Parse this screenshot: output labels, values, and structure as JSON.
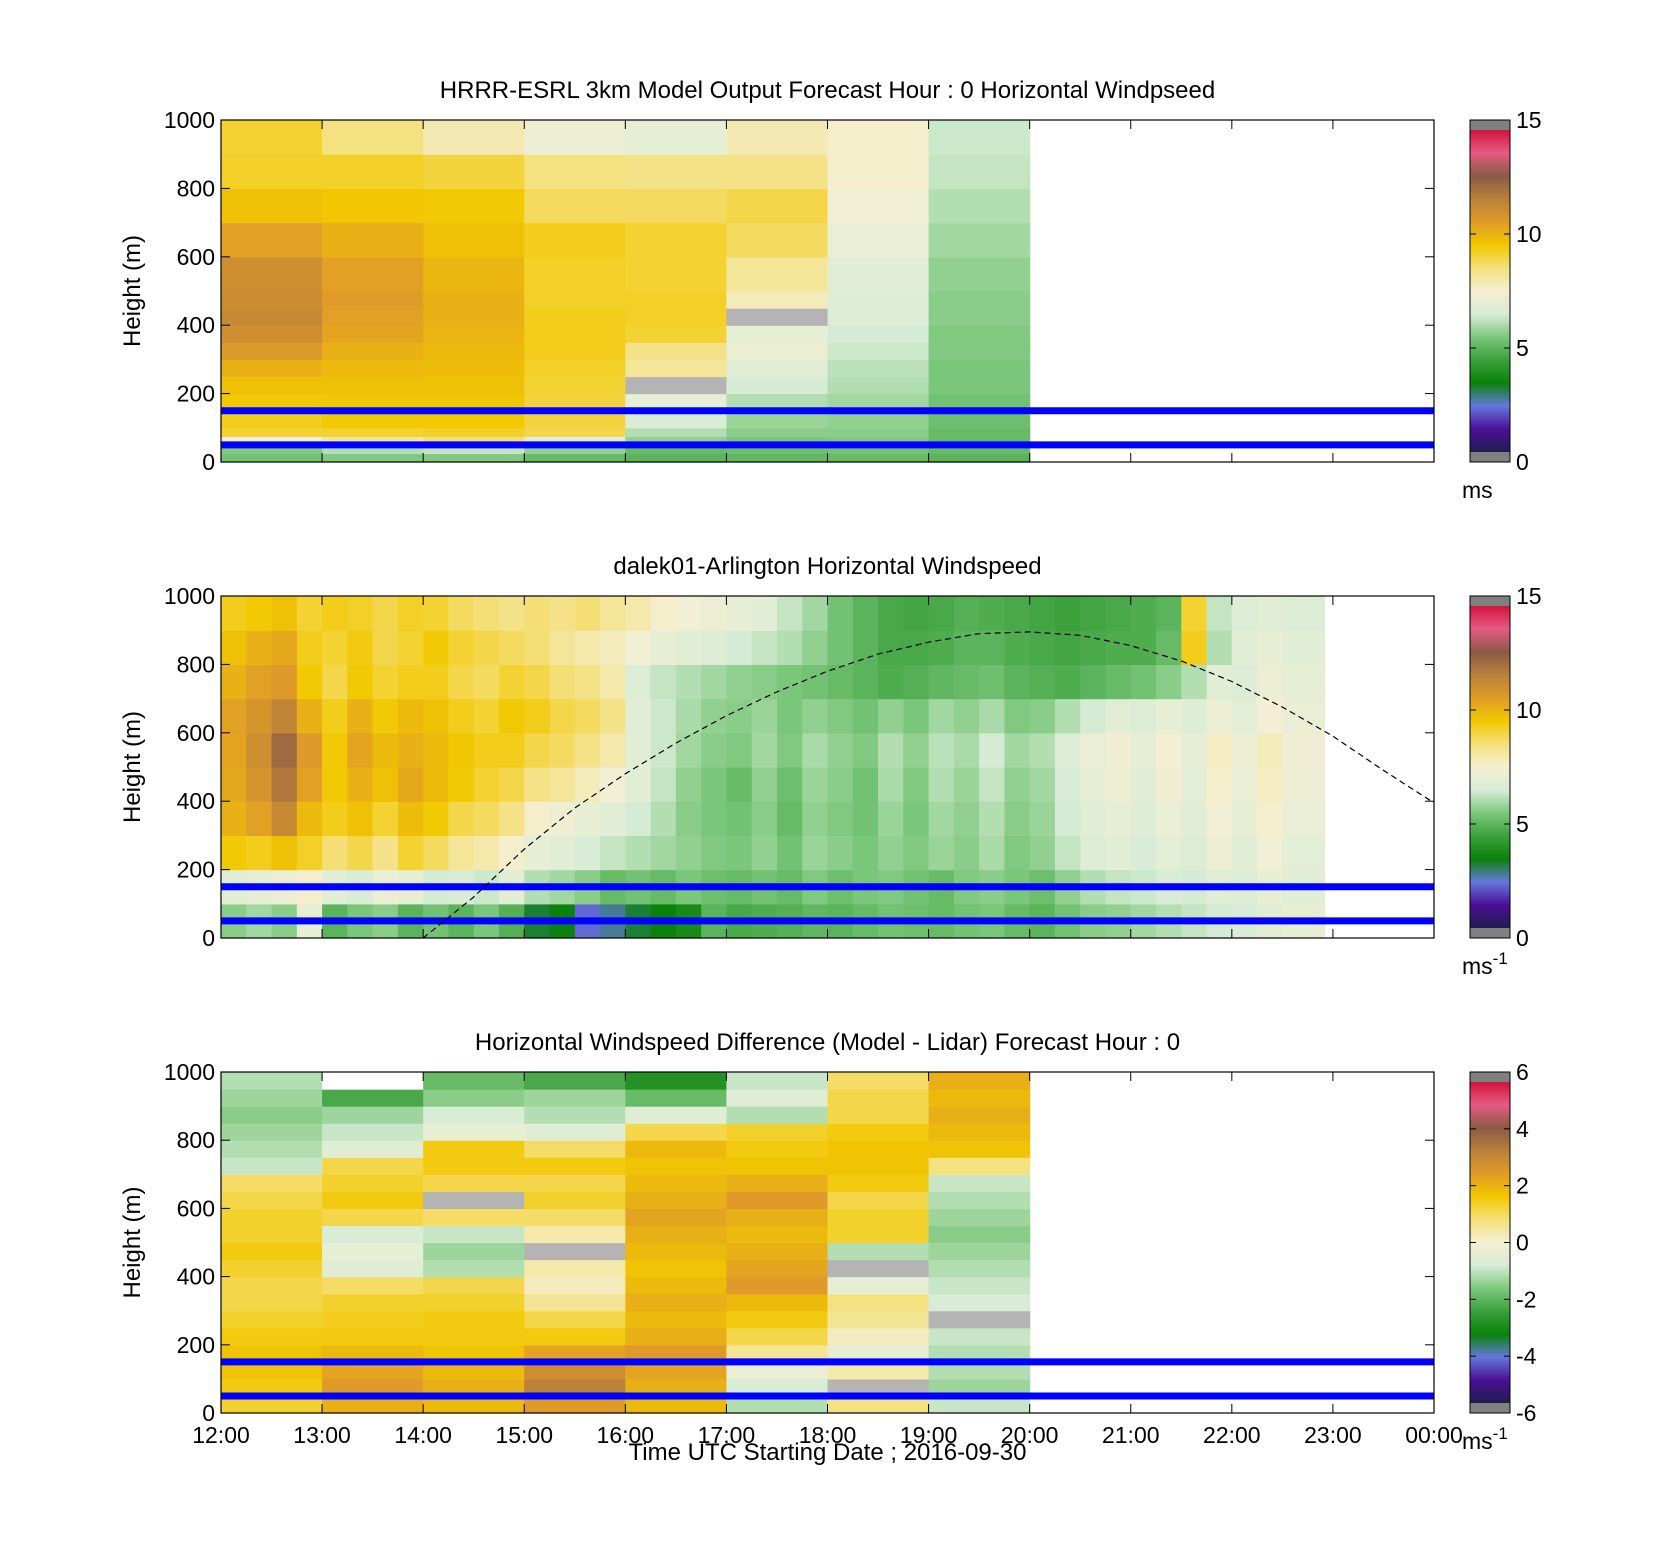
{
  "figure": {
    "xlabel": "Time UTC  Starting Date ; 2016-09-30",
    "x_tick_labels": [
      "12:00",
      "13:00",
      "14:00",
      "15:00",
      "16:00",
      "17:00",
      "18:00",
      "19:00",
      "20:00",
      "21:00",
      "22:00",
      "23:00",
      "00:00"
    ]
  },
  "colors": {
    "overlay_line": "#0000ff",
    "curve_line": "#000000",
    "colormap": [
      "#1e1e50",
      "#4b0f96",
      "#6478dc",
      "#0a820a",
      "#3ca03c",
      "#7dc87d",
      "#d7ecd5",
      "#f4efd4",
      "#f4e07a",
      "#f2c800",
      "#e09b28",
      "#b9803a",
      "#8a5a46",
      "#e65a82",
      "#d2143c"
    ]
  },
  "chart_data": [
    {
      "type": "heatmap",
      "title": "HRRR-ESRL 3km Model Output   Forecast Hour : 0 Horizontal Windpseed",
      "ylabel": "Height (m)",
      "xlabel": "",
      "xlim": [
        "12:00",
        "00:00"
      ],
      "ylim": [
        0,
        1000
      ],
      "y_tick_labels": [
        "0",
        "200",
        "400",
        "600",
        "800",
        "1000"
      ],
      "colorbar": {
        "range": [
          0,
          15
        ],
        "tick_labels": [
          "0",
          "5",
          "10",
          "15"
        ],
        "unit": "ms",
        "unit_sup": ""
      },
      "data_extent": [
        "12:00",
        "20:00"
      ],
      "overlay_lines_m": [
        50,
        150
      ],
      "grey_color": "#b4b4b4",
      "time_columns": [
        "12:00",
        "13:00",
        "14:00",
        "15:00",
        "16:00",
        "17:00",
        "18:00",
        "19:00"
      ],
      "height_rows_m": [
        0,
        25,
        50,
        75,
        100,
        150,
        200,
        250,
        300,
        350,
        400,
        450,
        500,
        600,
        700,
        800,
        900
      ],
      "values": [
        [
          5.2,
          5.4,
          5.4,
          5.0,
          4.8,
          4.9,
          5.0,
          4.8
        ],
        [
          5.4,
          6.0,
          6.2,
          5.6,
          5.0,
          5.1,
          5.2,
          5.0
        ],
        [
          7.5,
          8.2,
          8.6,
          6.8,
          5.6,
          5.3,
          5.4,
          5.0
        ],
        [
          9.2,
          9.2,
          9.3,
          9.0,
          6.0,
          5.5,
          5.5,
          5.0
        ],
        [
          9.4,
          9.6,
          9.6,
          9.1,
          6.5,
          5.7,
          5.6,
          5.1
        ],
        [
          9.6,
          9.7,
          9.7,
          9.1,
          7.0,
          6.0,
          5.8,
          5.2
        ],
        [
          9.8,
          9.8,
          9.8,
          9.2,
          "grey",
          6.4,
          6.0,
          5.3
        ],
        [
          10.2,
          10.0,
          9.9,
          9.3,
          8.2,
          6.8,
          6.1,
          5.3
        ],
        [
          10.8,
          10.2,
          10.0,
          9.4,
          8.4,
          7.2,
          6.3,
          5.4
        ],
        [
          11.2,
          10.5,
          10.1,
          9.4,
          9.2,
          7.0,
          6.4,
          5.4
        ],
        [
          11.4,
          10.6,
          10.2,
          9.4,
          9.3,
          "grey",
          6.6,
          5.5
        ],
        [
          11.3,
          10.7,
          10.2,
          9.3,
          9.3,
          7.8,
          6.7,
          5.5
        ],
        [
          11.2,
          10.6,
          10.1,
          9.3,
          9.2,
          8.2,
          6.8,
          5.6
        ],
        [
          10.6,
          10.2,
          9.8,
          9.4,
          9.2,
          8.8,
          7.1,
          5.8
        ],
        [
          9.8,
          9.7,
          9.6,
          8.8,
          8.8,
          9.0,
          7.4,
          6.0
        ],
        [
          9.3,
          9.3,
          9.1,
          8.5,
          8.4,
          8.4,
          7.6,
          6.2
        ],
        [
          9.2,
          8.5,
          7.9,
          7.2,
          7.0,
          7.9,
          7.6,
          6.3
        ]
      ]
    },
    {
      "type": "heatmap",
      "title": "dalek01-Arlington  Horizontal Windspeed",
      "ylabel": "Height (m)",
      "xlabel": "",
      "xlim": [
        "12:00",
        "00:00"
      ],
      "ylim": [
        0,
        1000
      ],
      "y_tick_labels": [
        "0",
        "200",
        "400",
        "600",
        "800",
        "1000"
      ],
      "colorbar": {
        "range": [
          0,
          15
        ],
        "tick_labels": [
          "0",
          "5",
          "10",
          "15"
        ],
        "unit": "ms",
        "unit_sup": "-1"
      },
      "data_extent": [
        "12:00",
        "22:55"
      ],
      "overlay_lines_m": [
        50,
        150
      ],
      "time_columns": [
        "12:00",
        "12:15",
        "12:30",
        "12:45",
        "13:00",
        "13:15",
        "13:30",
        "13:45",
        "14:00",
        "14:15",
        "14:30",
        "14:45",
        "15:00",
        "15:15",
        "15:30",
        "15:45",
        "16:00",
        "16:15",
        "16:30",
        "16:45",
        "17:00",
        "17:15",
        "17:30",
        "17:45",
        "18:00",
        "18:15",
        "18:30",
        "18:45",
        "19:00",
        "19:15",
        "19:30",
        "19:45",
        "20:00",
        "20:15",
        "20:30",
        "20:45",
        "21:00",
        "21:15",
        "21:30",
        "21:45",
        "22:00",
        "22:15",
        "22:30"
      ],
      "height_rows_m": [
        0,
        100,
        200,
        300,
        400,
        500,
        600,
        700,
        800,
        900
      ],
      "values": [
        [
          5.5,
          5.8,
          5.5,
          7.0,
          4.8,
          5.3,
          5.5,
          4.8,
          5.2,
          4.8,
          5.3,
          4.7,
          3.0,
          3.2,
          2.0,
          2.5,
          3.0,
          3.2,
          3.5,
          4.8,
          4.5,
          4.6,
          4.7,
          4.9,
          4.8,
          5.0,
          5.2,
          5.1,
          5.0,
          5.2,
          5.3,
          5.0,
          4.8,
          5.2,
          5.5,
          5.6,
          5.8,
          6.0,
          6.2,
          6.4,
          6.5,
          6.8,
          7.0
        ],
        [
          6.8,
          7.0,
          7.2,
          7.6,
          6.8,
          6.5,
          7.2,
          7.0,
          6.4,
          6.5,
          6.3,
          6.8,
          6.0,
          5.8,
          5.5,
          5.0,
          5.2,
          5.0,
          5.3,
          5.1,
          5.0,
          5.2,
          5.0,
          5.4,
          5.1,
          5.3,
          5.4,
          5.2,
          5.0,
          5.4,
          5.5,
          5.3,
          5.1,
          5.6,
          6.0,
          6.2,
          6.3,
          6.5,
          6.4,
          6.8,
          6.6,
          7.0,
          6.8
        ],
        [
          9.6,
          9.4,
          9.8,
          9.3,
          8.6,
          9.0,
          8.4,
          9.2,
          8.8,
          8.2,
          8.0,
          7.6,
          7.0,
          6.8,
          6.5,
          6.2,
          6.0,
          5.8,
          5.6,
          5.4,
          5.3,
          5.6,
          5.2,
          5.7,
          5.5,
          5.3,
          5.6,
          5.4,
          5.7,
          5.5,
          5.9,
          5.4,
          5.6,
          6.2,
          6.6,
          6.8,
          6.5,
          6.9,
          6.6,
          7.2,
          6.8,
          7.4,
          6.9
        ],
        [
          10.2,
          10.6,
          11.4,
          10.0,
          9.4,
          9.8,
          9.2,
          9.9,
          9.6,
          9.0,
          8.8,
          8.4,
          7.6,
          7.3,
          7.0,
          6.8,
          6.4,
          6.0,
          5.5,
          5.3,
          5.2,
          5.5,
          5.0,
          5.6,
          5.4,
          5.2,
          5.7,
          5.3,
          5.8,
          5.6,
          6.0,
          5.5,
          5.7,
          6.4,
          6.8,
          7.0,
          6.7,
          7.1,
          6.8,
          7.4,
          7.0,
          7.6,
          7.1
        ],
        [
          10.4,
          11.0,
          12.0,
          10.6,
          9.6,
          10.2,
          9.8,
          10.4,
          10.0,
          9.6,
          9.2,
          9.0,
          8.4,
          8.2,
          7.8,
          7.4,
          6.8,
          6.2,
          5.6,
          5.3,
          5.0,
          5.6,
          5.1,
          5.7,
          5.5,
          5.2,
          5.9,
          5.4,
          6.0,
          5.7,
          6.2,
          5.6,
          5.8,
          6.5,
          7.0,
          7.2,
          6.8,
          7.3,
          6.9,
          7.6,
          7.1,
          7.7,
          7.2
        ],
        [
          10.5,
          11.2,
          12.4,
          10.8,
          9.6,
          10.5,
          10.0,
          10.2,
          10.0,
          9.7,
          9.4,
          9.4,
          9.0,
          8.8,
          8.4,
          8.0,
          6.8,
          6.3,
          5.8,
          5.5,
          5.4,
          5.8,
          5.4,
          5.9,
          5.6,
          5.4,
          6.0,
          5.6,
          6.1,
          5.9,
          6.4,
          5.8,
          6.0,
          6.7,
          7.1,
          7.3,
          7.0,
          7.5,
          7.0,
          7.7,
          7.2,
          7.8,
          7.3
        ],
        [
          10.6,
          11.0,
          11.6,
          10.2,
          9.4,
          10.2,
          9.6,
          10.0,
          9.8,
          9.4,
          9.2,
          9.6,
          9.4,
          9.0,
          8.8,
          8.4,
          6.8,
          6.3,
          5.9,
          5.6,
          5.5,
          5.7,
          5.3,
          5.6,
          5.4,
          5.2,
          5.6,
          5.3,
          5.8,
          5.6,
          5.9,
          5.4,
          5.5,
          6.0,
          6.4,
          6.8,
          6.6,
          7.0,
          6.7,
          7.2,
          6.9,
          7.5,
          7.1
        ],
        [
          10.2,
          10.6,
          10.8,
          9.6,
          9.0,
          9.6,
          9.2,
          9.4,
          9.4,
          9.0,
          8.8,
          9.2,
          9.0,
          8.6,
          8.4,
          8.0,
          6.6,
          6.2,
          6.0,
          5.8,
          5.6,
          5.5,
          5.3,
          5.2,
          5.0,
          4.8,
          4.6,
          4.7,
          4.9,
          5.0,
          5.1,
          4.8,
          4.7,
          4.6,
          4.8,
          5.0,
          5.2,
          5.5,
          6.0,
          6.8,
          6.6,
          7.2,
          7.0
        ],
        [
          9.8,
          10.2,
          10.4,
          9.4,
          9.2,
          9.5,
          9.0,
          9.2,
          9.6,
          9.2,
          9.0,
          8.8,
          8.6,
          8.2,
          8.0,
          7.8,
          7.4,
          7.0,
          6.8,
          6.6,
          6.4,
          6.2,
          6.0,
          5.6,
          5.2,
          4.8,
          4.5,
          4.5,
          4.6,
          4.8,
          4.8,
          4.6,
          4.5,
          4.4,
          4.5,
          4.6,
          4.6,
          5.0,
          9.4,
          6.0,
          6.8,
          7.0,
          6.8
        ],
        [
          9.4,
          9.6,
          9.8,
          9.2,
          9.4,
          9.3,
          9.0,
          9.3,
          9.2,
          8.8,
          8.6,
          8.4,
          8.6,
          8.4,
          8.6,
          8.2,
          8.0,
          7.6,
          7.4,
          7.2,
          7.0,
          6.8,
          6.2,
          5.8,
          5.2,
          4.8,
          4.5,
          4.4,
          4.5,
          4.7,
          4.6,
          4.5,
          4.4,
          4.3,
          4.4,
          4.5,
          4.6,
          4.8,
          9.2,
          6.2,
          6.6,
          6.8,
          6.6
        ]
      ],
      "curve": {
        "time_hours_from_12": [
          2.0,
          2.5,
          3.0,
          3.5,
          4.0,
          4.5,
          5.0,
          5.5,
          6.0,
          6.5,
          7.0,
          7.5,
          8.0,
          8.5,
          9.0,
          9.5,
          10.0,
          10.5,
          11.0,
          11.5,
          12.0
        ],
        "height_m": [
          0,
          120,
          260,
          380,
          480,
          570,
          650,
          720,
          780,
          830,
          865,
          890,
          895,
          885,
          855,
          810,
          750,
          675,
          590,
          490,
          395
        ]
      }
    },
    {
      "type": "heatmap",
      "title": "Horizontal Windspeed Difference (Model - Lidar) Forecast Hour : 0",
      "ylabel": "Height (m)",
      "xlabel": "Time UTC  Starting Date ; 2016-09-30",
      "xlim": [
        "12:00",
        "00:00"
      ],
      "ylim": [
        0,
        1000
      ],
      "y_tick_labels": [
        "0",
        "200",
        "400",
        "600",
        "800",
        "1000"
      ],
      "colorbar": {
        "range": [
          -6,
          6
        ],
        "tick_labels": [
          "-6",
          "-4",
          "-2",
          "0",
          "2",
          "4",
          "6"
        ],
        "unit": "ms",
        "unit_sup": "-1"
      },
      "data_extent": [
        "12:00",
        "20:00"
      ],
      "overlay_lines_m": [
        50,
        150
      ],
      "grey_color": "#b4b4b4",
      "time_columns": [
        "12:00",
        "13:00",
        "14:00",
        "15:00",
        "16:00",
        "17:00",
        "18:00",
        "19:00"
      ],
      "height_rows_m": [
        0,
        50,
        100,
        150,
        200,
        250,
        300,
        350,
        400,
        450,
        500,
        550,
        600,
        650,
        700,
        750,
        800,
        850,
        900,
        950
      ],
      "values": [
        [
          1.4,
          2.2,
          2.0,
          2.6,
          2.0,
          -1.2,
          0.8,
          -1.0
        ],
        [
          1.6,
          2.6,
          2.2,
          3.4,
          2.2,
          -0.8,
          "grey",
          -1.4
        ],
        [
          1.8,
          2.4,
          2.0,
          3.0,
          2.4,
          -0.3,
          0.4,
          -1.2
        ],
        [
          1.8,
          2.0,
          1.8,
          2.4,
          2.6,
          0.6,
          -0.4,
          -1.2
        ],
        [
          1.6,
          1.6,
          1.6,
          1.6,
          2.2,
          1.2,
          0.2,
          -1.0
        ],
        [
          1.4,
          1.5,
          1.6,
          1.2,
          2.0,
          1.6,
          0.6,
          "grey"
        ],
        [
          1.2,
          1.4,
          1.4,
          0.6,
          2.2,
          2.0,
          0.8,
          -0.8
        ],
        [
          1.2,
          1.0,
          1.2,
          0.2,
          2.0,
          2.6,
          -0.4,
          -1.0
        ],
        [
          1.4,
          -0.6,
          -1.2,
          0.4,
          1.8,
          2.4,
          "grey",
          -1.2
        ],
        [
          1.6,
          -0.4,
          -1.4,
          "grey",
          2.0,
          2.2,
          -1.2,
          -1.4
        ],
        [
          1.4,
          -0.8,
          -1.0,
          0.4,
          2.2,
          2.0,
          1.4,
          -1.6
        ],
        [
          1.4,
          1.2,
          1.0,
          1.0,
          2.4,
          2.2,
          1.4,
          -1.4
        ],
        [
          1.2,
          1.6,
          "grey",
          1.4,
          2.2,
          2.6,
          1.2,
          -1.2
        ],
        [
          1.0,
          1.4,
          1.2,
          1.2,
          2.0,
          2.2,
          1.6,
          -1.0
        ],
        [
          -1.0,
          1.2,
          1.6,
          1.6,
          1.8,
          1.8,
          1.8,
          0.8
        ],
        [
          -1.2,
          -0.6,
          1.6,
          1.0,
          2.0,
          1.6,
          1.8,
          1.8
        ],
        [
          -1.4,
          -1.0,
          -0.4,
          -0.6,
          1.2,
          1.4,
          1.6,
          2.0
        ],
        [
          -1.6,
          -1.4,
          -0.8,
          -1.2,
          -0.6,
          -1.2,
          1.2,
          2.2
        ],
        [
          -1.4,
          -2.4,
          -1.6,
          -1.4,
          -2.0,
          -0.6,
          1.2,
          2.0
        ],
        [
          -1.2,
          "white",
          -2.0,
          -2.4,
          -3.0,
          -1.0,
          1.0,
          2.2
        ]
      ]
    }
  ]
}
